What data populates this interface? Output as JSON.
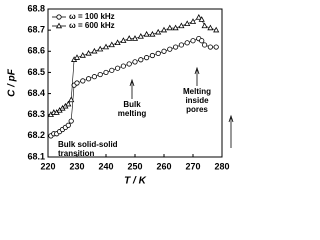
{
  "chart_data": {
    "type": "line",
    "y_label": "C / pF",
    "x_label": "T / K",
    "xlim": [
      220,
      280
    ],
    "xticks": [
      220,
      230,
      240,
      250,
      260,
      270,
      280
    ],
    "ylim": [
      68.1,
      68.8
    ],
    "yticks": [
      68.1,
      68.2,
      68.3,
      68.4,
      68.5,
      68.6,
      68.7,
      68.8
    ],
    "legend": "upper left",
    "x": [
      221,
      222,
      223,
      224,
      225,
      226,
      227,
      228,
      229,
      230,
      232,
      234,
      236,
      238,
      240,
      242,
      244,
      246,
      248,
      250,
      252,
      254,
      256,
      258,
      260,
      262,
      264,
      266,
      268,
      270,
      272,
      273,
      274,
      276,
      278
    ],
    "series": [
      {
        "name": "ω = 100 kHz",
        "marker": "circle",
        "color": "#000000",
        "values": [
          68.2,
          68.21,
          68.21,
          68.22,
          68.23,
          68.24,
          68.25,
          68.27,
          68.44,
          68.45,
          68.46,
          68.47,
          68.48,
          68.49,
          68.5,
          68.51,
          68.52,
          68.53,
          68.54,
          68.55,
          68.56,
          68.57,
          68.58,
          68.59,
          68.6,
          68.61,
          68.62,
          68.63,
          68.64,
          68.65,
          68.66,
          68.65,
          68.63,
          68.62,
          68.62
        ]
      },
      {
        "name": "ω = 600 kHz",
        "marker": "triangle",
        "color": "#000000",
        "values": [
          68.3,
          68.31,
          68.31,
          68.32,
          68.33,
          68.34,
          68.35,
          68.37,
          68.56,
          68.57,
          68.58,
          68.59,
          68.6,
          68.61,
          68.62,
          68.63,
          68.64,
          68.65,
          68.66,
          68.66,
          68.67,
          68.68,
          68.68,
          68.69,
          68.7,
          68.71,
          68.71,
          68.72,
          68.73,
          68.74,
          68.76,
          68.75,
          68.72,
          68.71,
          68.7
        ]
      }
    ],
    "annotations": [
      {
        "lines": [
          "Bulk solid-solid",
          "transition"
        ]
      },
      {
        "lines": [
          "Bulk",
          "melting"
        ]
      },
      {
        "lines": [
          "Melting",
          "inside",
          "pores"
        ]
      }
    ]
  }
}
